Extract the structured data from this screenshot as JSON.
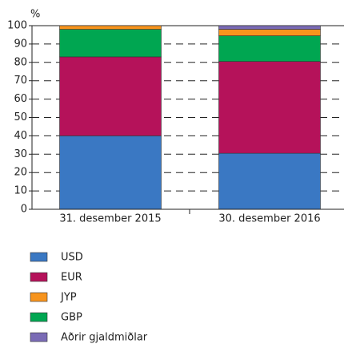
{
  "chart_data": {
    "type": "stacked_bar",
    "y_label": "%",
    "categories": [
      "31. desember 2015",
      "30. desember 2016"
    ],
    "series": [
      {
        "name": "USD",
        "color": "#3a78c3",
        "values": [
          40,
          30.5
        ]
      },
      {
        "name": "EUR",
        "color": "#b5125a",
        "values": [
          43,
          50
        ]
      },
      {
        "name": "JYP",
        "color": "#f7941d",
        "values": [
          2,
          3.5
        ]
      },
      {
        "name": "GBP",
        "color": "#00a651",
        "values": [
          15,
          14
        ]
      },
      {
        "name": "Aðrir gjaldmiðlar",
        "color": "#7a6bb5",
        "values": [
          0,
          2
        ]
      }
    ],
    "ylim": [
      0,
      100
    ],
    "yticks": [
      0,
      10,
      20,
      30,
      40,
      50,
      60,
      70,
      80,
      90,
      100
    ],
    "grid": true
  }
}
